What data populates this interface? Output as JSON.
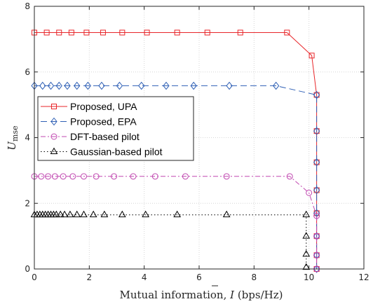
{
  "chart_data": {
    "type": "line",
    "xlabel_prefix": "Mutual information, ",
    "xlabel_symbol": "I",
    "xlabel_suffix": " (bps/Hz)",
    "ylabel_main": "U",
    "ylabel_sub": "mse",
    "xlim": [
      0,
      12
    ],
    "ylim": [
      0,
      8
    ],
    "xticks": [
      0,
      2,
      4,
      6,
      8,
      10,
      12
    ],
    "yticks": [
      0,
      2,
      4,
      6,
      8
    ],
    "grid": true,
    "legend_position": "left-middle",
    "series": [
      {
        "name": "Proposed, UPA",
        "color": "#e8262a",
        "marker": "square",
        "dash": "",
        "points": [
          [
            0.0,
            7.2
          ],
          [
            0.45,
            7.2
          ],
          [
            0.9,
            7.2
          ],
          [
            1.35,
            7.2
          ],
          [
            1.9,
            7.2
          ],
          [
            2.5,
            7.2
          ],
          [
            3.2,
            7.2
          ],
          [
            4.1,
            7.2
          ],
          [
            5.2,
            7.2
          ],
          [
            6.3,
            7.2
          ],
          [
            7.5,
            7.2
          ],
          [
            9.2,
            7.2
          ],
          [
            10.1,
            6.5
          ],
          [
            10.28,
            5.3
          ],
          [
            10.28,
            4.2
          ],
          [
            10.28,
            3.25
          ],
          [
            10.28,
            2.4
          ],
          [
            10.28,
            1.7
          ],
          [
            10.28,
            1.0
          ],
          [
            10.28,
            0.42
          ],
          [
            10.28,
            0.0
          ]
        ]
      },
      {
        "name": "Proposed, EPA",
        "color": "#2e5fb5",
        "marker": "diamond",
        "dash": "9,5",
        "points": [
          [
            0.0,
            5.58
          ],
          [
            0.3,
            5.58
          ],
          [
            0.6,
            5.58
          ],
          [
            0.9,
            5.58
          ],
          [
            1.2,
            5.58
          ],
          [
            1.55,
            5.58
          ],
          [
            1.95,
            5.58
          ],
          [
            2.45,
            5.58
          ],
          [
            3.1,
            5.58
          ],
          [
            3.9,
            5.58
          ],
          [
            4.8,
            5.58
          ],
          [
            5.8,
            5.58
          ],
          [
            7.1,
            5.58
          ],
          [
            8.8,
            5.58
          ],
          [
            10.28,
            5.3
          ],
          [
            10.28,
            4.2
          ],
          [
            10.28,
            3.25
          ],
          [
            10.28,
            2.4
          ],
          [
            10.28,
            1.7
          ],
          [
            10.28,
            1.0
          ],
          [
            10.28,
            0.42
          ],
          [
            10.28,
            0.0
          ]
        ]
      },
      {
        "name": "DFT-based pilot",
        "color": "#c149b1",
        "marker": "circle",
        "dash": "7,3,2,3",
        "points": [
          [
            0.0,
            2.82
          ],
          [
            0.25,
            2.82
          ],
          [
            0.5,
            2.82
          ],
          [
            0.75,
            2.82
          ],
          [
            1.05,
            2.82
          ],
          [
            1.4,
            2.82
          ],
          [
            1.8,
            2.82
          ],
          [
            2.25,
            2.82
          ],
          [
            2.9,
            2.82
          ],
          [
            3.6,
            2.82
          ],
          [
            4.4,
            2.82
          ],
          [
            5.5,
            2.82
          ],
          [
            7.0,
            2.82
          ],
          [
            9.3,
            2.82
          ],
          [
            10.0,
            2.32
          ],
          [
            10.28,
            1.62
          ],
          [
            10.28,
            1.0
          ],
          [
            10.28,
            0.42
          ],
          [
            10.28,
            0.0
          ]
        ]
      },
      {
        "name": "Gaussian-based pilot",
        "color": "#000000",
        "marker": "triangle",
        "dash": "1.5,3",
        "points": [
          [
            0.0,
            1.65
          ],
          [
            0.1,
            1.65
          ],
          [
            0.2,
            1.65
          ],
          [
            0.3,
            1.65
          ],
          [
            0.4,
            1.65
          ],
          [
            0.5,
            1.65
          ],
          [
            0.6,
            1.65
          ],
          [
            0.7,
            1.65
          ],
          [
            0.8,
            1.65
          ],
          [
            0.95,
            1.65
          ],
          [
            1.1,
            1.65
          ],
          [
            1.3,
            1.65
          ],
          [
            1.55,
            1.65
          ],
          [
            1.8,
            1.65
          ],
          [
            2.15,
            1.65
          ],
          [
            2.55,
            1.65
          ],
          [
            3.2,
            1.65
          ],
          [
            4.05,
            1.65
          ],
          [
            5.2,
            1.65
          ],
          [
            7.0,
            1.65
          ],
          [
            9.9,
            1.65
          ],
          [
            9.9,
            1.0
          ],
          [
            9.9,
            0.45
          ],
          [
            9.9,
            0.05
          ]
        ]
      }
    ]
  }
}
